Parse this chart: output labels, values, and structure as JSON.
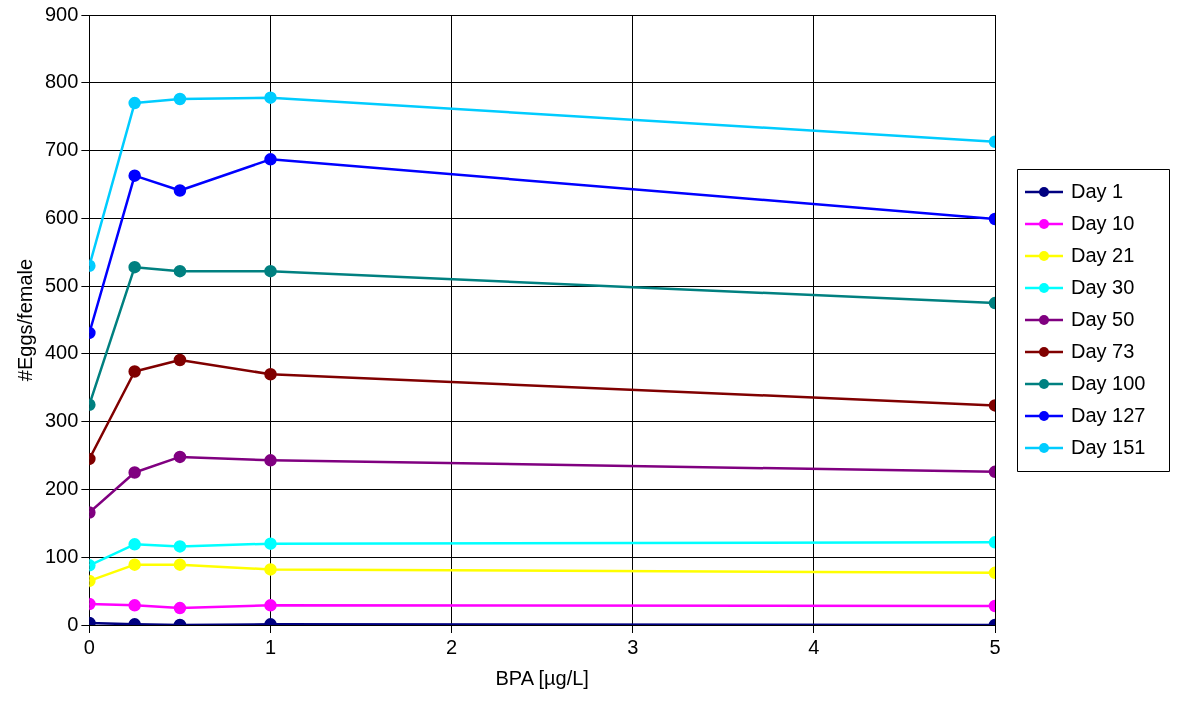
{
  "chart_data": {
    "type": "line",
    "xlabel": "BPA [µg/L]",
    "ylabel": "#Eggs/female",
    "x": [
      0,
      0.25,
      0.5,
      1,
      5
    ],
    "series": [
      {
        "name": "Day 1",
        "color": "#000080",
        "values": [
          3,
          1,
          0,
          1,
          0
        ]
      },
      {
        "name": "Day 10",
        "color": "#ff00ff",
        "values": [
          31,
          29,
          25,
          29,
          28
        ]
      },
      {
        "name": "Day 21",
        "color": "#ffff00",
        "values": [
          65,
          89,
          89,
          82,
          77
        ]
      },
      {
        "name": "Day 30",
        "color": "#00ffff",
        "values": [
          88,
          119,
          116,
          120,
          122
        ]
      },
      {
        "name": "Day 50",
        "color": "#800080",
        "values": [
          166,
          225,
          248,
          243,
          226
        ]
      },
      {
        "name": "Day 73",
        "color": "#800000",
        "values": [
          245,
          374,
          391,
          370,
          324
        ]
      },
      {
        "name": "Day 100",
        "color": "#008080",
        "values": [
          325,
          528,
          522,
          522,
          475
        ]
      },
      {
        "name": "Day 127",
        "color": "#0000ff",
        "values": [
          431,
          663,
          641,
          687,
          599
        ]
      },
      {
        "name": "Day 151",
        "color": "#00ccff",
        "values": [
          530,
          770,
          776,
          778,
          713
        ]
      }
    ],
    "xlim": [
      0,
      5
    ],
    "xticks": [
      0,
      1,
      2,
      3,
      4,
      5
    ],
    "ylim": [
      0,
      900
    ],
    "yticks": [
      0,
      100,
      200,
      300,
      400,
      500,
      600,
      700,
      800,
      900
    ],
    "grid": true,
    "legend": "right",
    "marker": "circle",
    "line_style": "solid"
  }
}
